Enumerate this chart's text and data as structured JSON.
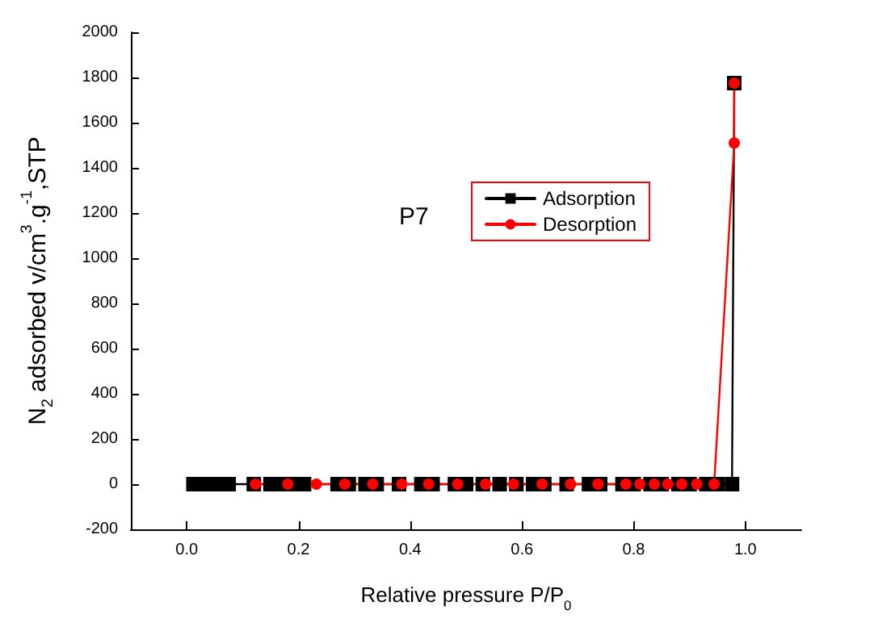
{
  "chart_data": {
    "type": "line",
    "ylabel": "N$_{2}$ adsorbed v/cm$^{3}$.g$^{-1}$,STP",
    "xlabel": "Relative pressure P/P$_{0}$",
    "annotations": [
      "P7"
    ],
    "xlim": [
      -0.1,
      1.1
    ],
    "xticks": [
      {
        "value": 0,
        "label": "0.0"
      },
      0.2,
      0.4,
      0.6,
      0.8,
      {
        "value": 1,
        "label": "1.0"
      }
    ],
    "ylim": [
      -200,
      2000
    ],
    "yticks": [
      -200,
      0,
      200,
      400,
      600,
      800,
      1000,
      1200,
      1400,
      1600,
      1800,
      2000
    ],
    "legend": "top right",
    "grid": false,
    "line_style": "solid",
    "series": [
      {
        "name": "Adsorption",
        "color": "#000000",
        "marker": "square",
        "x": [
          0.012,
          0.035,
          0.06,
          0.075,
          0.12,
          0.15,
          0.17,
          0.19,
          0.21,
          0.27,
          0.29,
          0.32,
          0.34,
          0.38,
          0.42,
          0.44,
          0.48,
          0.5,
          0.53,
          0.56,
          0.59,
          0.62,
          0.64,
          0.68,
          0.72,
          0.74,
          0.78,
          0.8,
          0.83,
          0.85,
          0.88,
          0.9,
          0.93,
          0.95,
          0.976,
          0.98
        ],
        "values": [
          0,
          0,
          0,
          0,
          0,
          0,
          0,
          0,
          0,
          0,
          0,
          0,
          0,
          0,
          0,
          0,
          0,
          0,
          0,
          0,
          0,
          0,
          0,
          0,
          0,
          0,
          0,
          0,
          0,
          0,
          0,
          0,
          0,
          0,
          0,
          1775
        ]
      },
      {
        "name": "Desorption",
        "color": "#ff0000",
        "marker": "circle",
        "x": [
          0.98,
          0.98,
          0.944,
          0.913,
          0.886,
          0.861,
          0.837,
          0.811,
          0.786,
          0.736,
          0.687,
          0.636,
          0.585,
          0.535,
          0.485,
          0.433,
          0.385,
          0.333,
          0.283,
          0.232,
          0.181,
          0.123
        ],
        "values": [
          1775,
          1510,
          0,
          0,
          0,
          0,
          0,
          0,
          0,
          0,
          0,
          0,
          0,
          0,
          0,
          0,
          0,
          0,
          0,
          0,
          0,
          0
        ]
      }
    ]
  }
}
